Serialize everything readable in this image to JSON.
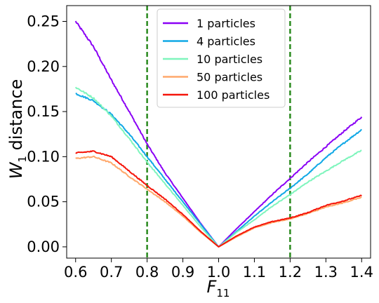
{
  "chart_data": {
    "type": "line",
    "xlabel": "F",
    "xlabel_sub": "11",
    "ylabel": "W",
    "ylabel_sub": "1",
    "ylabel_suffix": " distance",
    "xlim": [
      0.575,
      1.425
    ],
    "ylim": [
      -0.0125,
      0.2675
    ],
    "xticks": [
      0.6,
      0.7,
      0.8,
      0.9,
      1.0,
      1.1,
      1.2,
      1.3,
      1.4
    ],
    "xtick_labels": [
      "0.6",
      "0.7",
      "0.8",
      "0.9",
      "1.0",
      "1.1",
      "1.2",
      "1.3",
      "1.4"
    ],
    "yticks": [
      0.0,
      0.05,
      0.1,
      0.15,
      0.2,
      0.25
    ],
    "ytick_labels": [
      "0.00",
      "0.05",
      "0.10",
      "0.15",
      "0.20",
      "0.25"
    ],
    "grid": false,
    "legend_position": "top-center",
    "vlines": [
      {
        "x": 0.8,
        "color": "#2a8a1e",
        "style": "dashed"
      },
      {
        "x": 1.2,
        "color": "#2a8a1e",
        "style": "dashed"
      }
    ],
    "x": [
      0.6,
      0.65,
      0.7,
      0.75,
      0.8,
      0.85,
      0.9,
      0.95,
      1.0,
      1.05,
      1.1,
      1.15,
      1.2,
      1.25,
      1.3,
      1.35,
      1.4
    ],
    "series": [
      {
        "name": "1 particles",
        "color": "#8a00f5",
        "values": [
          0.25,
          0.222,
          0.185,
          0.15,
          0.114,
          0.082,
          0.054,
          0.026,
          0.0,
          0.02,
          0.039,
          0.058,
          0.076,
          0.094,
          0.111,
          0.128,
          0.144
        ]
      },
      {
        "name": "4 particles",
        "color": "#10a8e6",
        "values": [
          0.17,
          0.162,
          0.147,
          0.125,
          0.1,
          0.075,
          0.05,
          0.025,
          0.0,
          0.017,
          0.034,
          0.05,
          0.065,
          0.081,
          0.099,
          0.115,
          0.13
        ]
      },
      {
        "name": "10 particles",
        "color": "#7ff5bd",
        "values": [
          0.177,
          0.165,
          0.145,
          0.12,
          0.094,
          0.07,
          0.046,
          0.022,
          0.0,
          0.016,
          0.03,
          0.045,
          0.058,
          0.072,
          0.084,
          0.096,
          0.107
        ]
      },
      {
        "name": "50 particles",
        "color": "#ffa86b",
        "values": [
          0.098,
          0.1,
          0.093,
          0.078,
          0.064,
          0.05,
          0.034,
          0.016,
          0.0,
          0.011,
          0.021,
          0.027,
          0.031,
          0.037,
          0.044,
          0.049,
          0.055
        ]
      },
      {
        "name": "100 particles",
        "color": "#f5150a",
        "values": [
          0.104,
          0.106,
          0.1,
          0.084,
          0.068,
          0.053,
          0.036,
          0.017,
          0.0,
          0.012,
          0.022,
          0.028,
          0.032,
          0.038,
          0.046,
          0.051,
          0.057
        ]
      }
    ]
  }
}
